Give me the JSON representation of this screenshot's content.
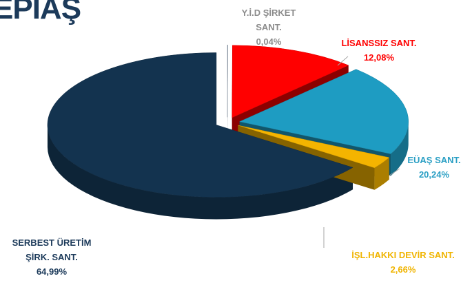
{
  "logo": "EPIAŞ",
  "chart_data": {
    "type": "pie3d",
    "categories": [
      "Y.İ.D  ŞİRKET SANT.",
      "LİSANSSIZ SANT.",
      "EÜAŞ SANT.",
      "İŞL.HAKKI DEVİR SANT.",
      "SERBEST ÜRETİM ŞİRK. SANT."
    ],
    "values": [
      0.04,
      12.08,
      20.24,
      2.66,
      64.99
    ],
    "value_labels": [
      "0,04%",
      "12,08%",
      "20,24%",
      "2,66%",
      "64,99%"
    ],
    "colors": [
      "#8d9cae",
      "#ff0000",
      "#1e9cc2",
      "#f4b400",
      "#13334f"
    ],
    "label_colors": [
      "#8c8c8c",
      "#ff0000",
      "#2a9fc4",
      "#f0b400",
      "#1c3a5a"
    ]
  }
}
